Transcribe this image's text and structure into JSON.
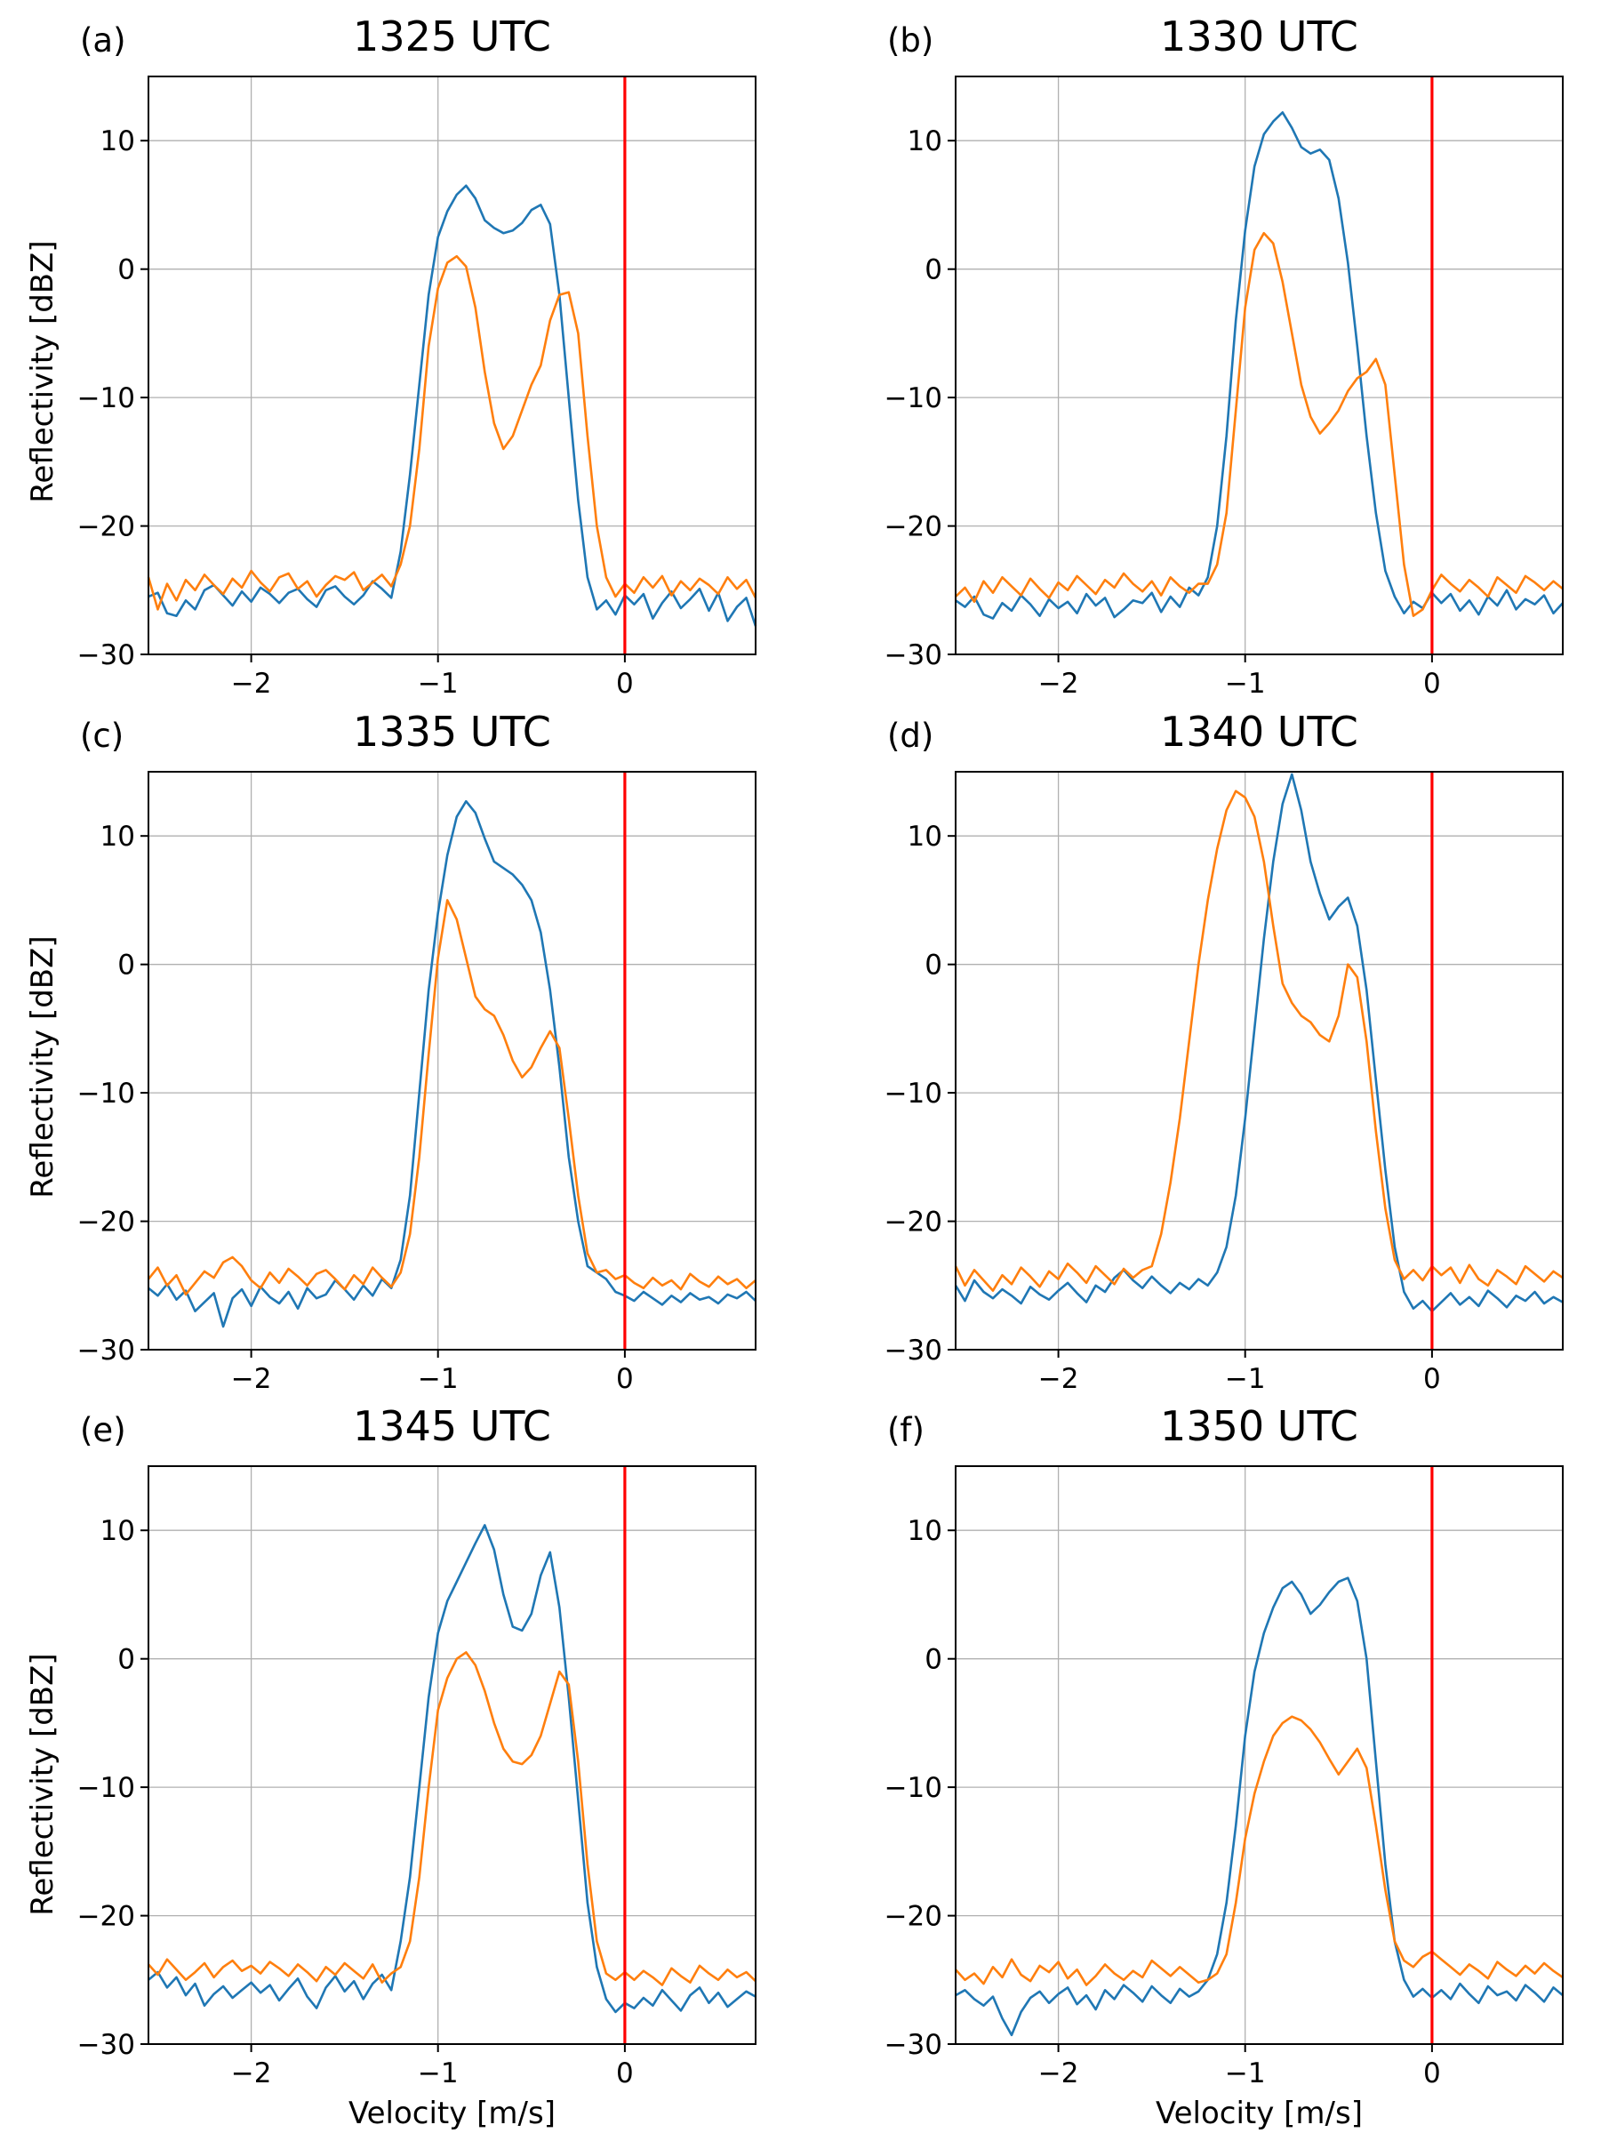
{
  "figure": {
    "background": "#ffffff"
  },
  "chart_data": {
    "type": "line",
    "xlabel": "Velocity [m/s]",
    "ylabel": "Reflectivity [dBZ]",
    "x_start": -2.55,
    "x_step": 0.05,
    "xlim": [
      -2.55,
      0.7
    ],
    "ylim": [
      -30,
      15
    ],
    "xticks": [
      -2,
      -1,
      0
    ],
    "yticks": [
      -30,
      -20,
      -10,
      0,
      10
    ],
    "grid": true,
    "legend": "none",
    "vline_x": 0,
    "colors": {
      "series_blue": "#1f77b4",
      "series_orange": "#ff7f0e",
      "vline": "#ff0000",
      "grid": "#b0b0b0",
      "axis": "#000000"
    },
    "panels": [
      {
        "tag": "(a)",
        "title": "1325 UTC",
        "series": [
          {
            "name": "blue",
            "color": "#1f77b4",
            "values": [
              -25.5,
              -25.2,
              -26.8,
              -27.0,
              -25.8,
              -26.5,
              -25.0,
              -24.6,
              -25.4,
              -26.2,
              -25.1,
              -25.9,
              -24.8,
              -25.3,
              -26.0,
              -25.2,
              -24.9,
              -25.7,
              -26.3,
              -25.0,
              -24.7,
              -25.5,
              -26.1,
              -25.4,
              -24.3,
              -24.9,
              -25.6,
              -22.0,
              -16.0,
              -9.0,
              -2.0,
              2.5,
              4.5,
              5.8,
              6.5,
              5.5,
              3.8,
              3.2,
              2.8,
              3.0,
              3.6,
              4.6,
              5.0,
              3.5,
              -2.0,
              -10.0,
              -18.0,
              -24.0,
              -26.5,
              -25.8,
              -26.9,
              -25.4,
              -26.1,
              -25.3,
              -27.2,
              -26.0,
              -25.1,
              -26.4,
              -25.7,
              -24.9,
              -26.6,
              -25.2,
              -27.4,
              -26.3,
              -25.6,
              -27.8
            ]
          },
          {
            "name": "orange",
            "color": "#ff7f0e",
            "values": [
              -24.0,
              -26.5,
              -24.5,
              -25.8,
              -24.2,
              -25.0,
              -23.8,
              -24.6,
              -25.3,
              -24.1,
              -24.8,
              -23.5,
              -24.4,
              -25.1,
              -24.0,
              -23.7,
              -24.9,
              -24.3,
              -25.5,
              -24.6,
              -23.9,
              -24.2,
              -23.6,
              -25.0,
              -24.4,
              -23.8,
              -24.7,
              -23.0,
              -20.0,
              -14.0,
              -6.0,
              -1.5,
              0.5,
              1.0,
              0.2,
              -3.0,
              -8.0,
              -12.0,
              -14.0,
              -13.0,
              -11.0,
              -9.0,
              -7.5,
              -4.0,
              -2.0,
              -1.8,
              -5.0,
              -13.0,
              -20.0,
              -24.0,
              -25.5,
              -24.5,
              -25.2,
              -24.0,
              -24.8,
              -23.9,
              -25.4,
              -24.3,
              -25.0,
              -24.1,
              -24.6,
              -25.3,
              -24.0,
              -24.9,
              -24.2,
              -25.6
            ]
          }
        ]
      },
      {
        "tag": "(b)",
        "title": "1330 UTC",
        "series": [
          {
            "name": "blue",
            "color": "#1f77b4",
            "values": [
              -25.8,
              -26.3,
              -25.5,
              -26.9,
              -27.2,
              -26.0,
              -26.6,
              -25.4,
              -26.1,
              -27.0,
              -25.7,
              -26.4,
              -25.9,
              -26.8,
              -25.3,
              -26.2,
              -25.6,
              -27.1,
              -26.5,
              -25.8,
              -26.0,
              -25.2,
              -26.7,
              -25.5,
              -26.3,
              -24.8,
              -25.4,
              -24.0,
              -20.0,
              -13.0,
              -4.0,
              3.0,
              8.0,
              10.5,
              11.5,
              12.2,
              11.0,
              9.5,
              9.0,
              9.3,
              8.5,
              5.5,
              0.5,
              -6.0,
              -13.0,
              -19.0,
              -23.5,
              -25.5,
              -26.8,
              -25.9,
              -26.4,
              -25.2,
              -26.0,
              -25.3,
              -26.6,
              -25.8,
              -26.9,
              -25.5,
              -26.2,
              -25.0,
              -26.5,
              -25.7,
              -26.1,
              -25.4,
              -26.8,
              -26.0
            ]
          },
          {
            "name": "orange",
            "color": "#ff7f0e",
            "values": [
              -25.5,
              -24.8,
              -25.9,
              -24.3,
              -25.2,
              -24.0,
              -24.7,
              -25.4,
              -24.1,
              -24.9,
              -25.6,
              -24.4,
              -25.0,
              -23.9,
              -24.6,
              -25.3,
              -24.2,
              -24.8,
              -23.7,
              -24.5,
              -25.1,
              -24.3,
              -25.4,
              -24.0,
              -24.7,
              -25.2,
              -24.5,
              -24.5,
              -23.0,
              -19.0,
              -11.0,
              -3.0,
              1.5,
              2.8,
              2.0,
              -1.0,
              -5.0,
              -9.0,
              -11.5,
              -12.8,
              -12.0,
              -11.0,
              -9.5,
              -8.5,
              -8.0,
              -7.0,
              -9.0,
              -16.0,
              -23.0,
              -27.0,
              -26.5,
              -25.0,
              -23.8,
              -24.5,
              -25.1,
              -24.2,
              -24.8,
              -25.5,
              -24.0,
              -24.6,
              -25.2,
              -23.9,
              -24.4,
              -25.0,
              -24.3,
              -24.9
            ]
          }
        ]
      },
      {
        "tag": "(c)",
        "title": "1335 UTC",
        "series": [
          {
            "name": "blue",
            "color": "#1f77b4",
            "values": [
              -25.2,
              -25.8,
              -24.9,
              -26.1,
              -25.4,
              -27.0,
              -26.3,
              -25.6,
              -28.2,
              -26.0,
              -25.3,
              -26.6,
              -25.1,
              -25.9,
              -26.4,
              -25.5,
              -26.8,
              -25.2,
              -26.0,
              -25.7,
              -24.6,
              -25.3,
              -26.1,
              -25.0,
              -25.8,
              -24.5,
              -25.2,
              -23.0,
              -18.0,
              -10.0,
              -2.0,
              4.0,
              8.5,
              11.5,
              12.7,
              11.8,
              9.8,
              8.0,
              7.5,
              7.0,
              6.2,
              5.0,
              2.5,
              -2.0,
              -8.0,
              -15.0,
              -20.0,
              -23.5,
              -24.0,
              -24.5,
              -25.5,
              -25.8,
              -26.2,
              -25.5,
              -26.0,
              -26.5,
              -25.8,
              -26.3,
              -25.6,
              -26.1,
              -25.9,
              -26.4,
              -25.7,
              -26.0,
              -25.5,
              -26.2
            ]
          },
          {
            "name": "orange",
            "color": "#ff7f0e",
            "values": [
              -24.5,
              -23.6,
              -25.0,
              -24.2,
              -25.7,
              -24.8,
              -23.9,
              -24.4,
              -23.2,
              -22.8,
              -23.5,
              -24.6,
              -25.2,
              -24.0,
              -24.8,
              -23.7,
              -24.3,
              -25.0,
              -24.1,
              -23.8,
              -24.5,
              -25.3,
              -24.2,
              -24.9,
              -23.6,
              -24.4,
              -25.1,
              -24.0,
              -21.0,
              -15.0,
              -7.0,
              0.5,
              5.0,
              3.5,
              0.5,
              -2.5,
              -3.5,
              -4.0,
              -5.5,
              -7.5,
              -8.8,
              -8.0,
              -6.5,
              -5.2,
              -6.5,
              -12.0,
              -18.0,
              -22.5,
              -24.0,
              -23.8,
              -24.5,
              -24.2,
              -24.8,
              -25.2,
              -24.4,
              -25.0,
              -24.6,
              -25.3,
              -24.1,
              -24.7,
              -25.1,
              -24.3,
              -24.9,
              -24.5,
              -25.2,
              -24.6
            ]
          }
        ]
      },
      {
        "tag": "(d)",
        "title": "1340 UTC",
        "series": [
          {
            "name": "blue",
            "color": "#1f77b4",
            "values": [
              -25.0,
              -26.2,
              -24.6,
              -25.5,
              -26.0,
              -25.3,
              -25.8,
              -26.4,
              -25.1,
              -25.7,
              -26.1,
              -25.4,
              -24.8,
              -25.6,
              -26.3,
              -25.0,
              -25.5,
              -24.4,
              -23.8,
              -24.6,
              -25.2,
              -24.3,
              -25.0,
              -25.6,
              -24.8,
              -25.3,
              -24.5,
              -25.0,
              -24.0,
              -22.0,
              -18.0,
              -12.0,
              -5.0,
              2.0,
              8.0,
              12.5,
              14.8,
              12.0,
              8.0,
              5.5,
              3.5,
              4.5,
              5.2,
              3.0,
              -2.0,
              -9.0,
              -16.0,
              -22.0,
              -25.5,
              -26.8,
              -26.2,
              -27.0,
              -26.3,
              -25.6,
              -26.5,
              -25.9,
              -26.6,
              -25.4,
              -26.0,
              -26.7,
              -25.8,
              -26.2,
              -25.5,
              -26.4,
              -25.9,
              -26.3
            ]
          },
          {
            "name": "orange",
            "color": "#ff7f0e",
            "values": [
              -23.5,
              -25.0,
              -23.8,
              -24.6,
              -25.4,
              -24.2,
              -24.9,
              -23.6,
              -24.3,
              -25.1,
              -23.9,
              -24.5,
              -23.3,
              -24.0,
              -24.8,
              -23.5,
              -24.2,
              -24.9,
              -23.7,
              -24.4,
              -23.8,
              -23.5,
              -21.0,
              -17.0,
              -12.0,
              -6.0,
              0.0,
              5.0,
              9.0,
              12.0,
              13.5,
              13.0,
              11.5,
              8.0,
              3.0,
              -1.5,
              -3.0,
              -4.0,
              -4.5,
              -5.5,
              -6.0,
              -4.0,
              0.0,
              -1.0,
              -6.0,
              -13.0,
              -19.0,
              -23.0,
              -24.5,
              -23.8,
              -24.6,
              -23.5,
              -24.2,
              -23.6,
              -24.8,
              -23.4,
              -24.5,
              -25.0,
              -23.8,
              -24.3,
              -24.9,
              -23.5,
              -24.1,
              -24.7,
              -23.9,
              -24.4
            ]
          }
        ]
      },
      {
        "tag": "(e)",
        "title": "1345 UTC",
        "series": [
          {
            "name": "blue",
            "color": "#1f77b4",
            "values": [
              -25.0,
              -24.4,
              -25.6,
              -24.8,
              -26.2,
              -25.3,
              -27.0,
              -26.1,
              -25.5,
              -26.4,
              -25.8,
              -25.2,
              -26.0,
              -25.4,
              -26.6,
              -25.7,
              -24.9,
              -26.3,
              -27.2,
              -25.6,
              -24.7,
              -25.9,
              -25.1,
              -26.5,
              -25.3,
              -24.6,
              -25.8,
              -22.0,
              -17.0,
              -10.0,
              -3.0,
              2.0,
              4.5,
              6.0,
              7.5,
              9.0,
              10.4,
              8.5,
              5.0,
              2.5,
              2.2,
              3.5,
              6.5,
              8.3,
              4.0,
              -3.0,
              -11.0,
              -19.0,
              -24.0,
              -26.5,
              -27.5,
              -26.8,
              -27.2,
              -26.4,
              -27.0,
              -25.8,
              -26.6,
              -27.4,
              -26.2,
              -25.6,
              -26.8,
              -26.0,
              -27.1,
              -26.5,
              -25.9,
              -26.3
            ]
          },
          {
            "name": "orange",
            "color": "#ff7f0e",
            "values": [
              -23.8,
              -24.6,
              -23.4,
              -24.2,
              -25.0,
              -24.4,
              -23.7,
              -24.8,
              -24.0,
              -23.5,
              -24.3,
              -23.9,
              -24.5,
              -23.6,
              -24.1,
              -24.7,
              -23.8,
              -24.4,
              -25.1,
              -24.0,
              -24.6,
              -23.7,
              -24.3,
              -24.9,
              -23.8,
              -25.2,
              -24.5,
              -24.0,
              -22.0,
              -17.0,
              -10.0,
              -4.0,
              -1.5,
              0.0,
              0.5,
              -0.5,
              -2.5,
              -5.0,
              -7.0,
              -8.0,
              -8.2,
              -7.5,
              -6.0,
              -3.5,
              -1.0,
              -2.0,
              -8.0,
              -16.0,
              -22.0,
              -24.5,
              -25.0,
              -24.4,
              -25.0,
              -24.3,
              -24.8,
              -25.4,
              -24.1,
              -24.7,
              -25.2,
              -23.9,
              -24.5,
              -25.0,
              -24.2,
              -24.8,
              -24.4,
              -25.1
            ]
          }
        ]
      },
      {
        "tag": "(f)",
        "title": "1350 UTC",
        "series": [
          {
            "name": "blue",
            "color": "#1f77b4",
            "values": [
              -26.2,
              -25.8,
              -26.5,
              -27.0,
              -26.3,
              -28.0,
              -29.3,
              -27.5,
              -26.4,
              -25.9,
              -26.8,
              -26.1,
              -25.6,
              -26.9,
              -26.2,
              -27.3,
              -25.8,
              -26.5,
              -25.4,
              -26.0,
              -26.7,
              -25.5,
              -26.2,
              -26.8,
              -25.7,
              -26.3,
              -25.9,
              -25.0,
              -23.0,
              -19.0,
              -13.0,
              -6.0,
              -1.0,
              2.0,
              4.0,
              5.5,
              6.0,
              5.0,
              3.5,
              4.2,
              5.2,
              6.0,
              6.3,
              4.5,
              0.0,
              -8.0,
              -16.0,
              -22.0,
              -25.0,
              -26.3,
              -25.7,
              -26.4,
              -25.8,
              -26.5,
              -25.3,
              -26.1,
              -26.8,
              -25.5,
              -26.2,
              -25.9,
              -26.6,
              -25.4,
              -26.0,
              -26.7,
              -25.6,
              -26.2
            ]
          },
          {
            "name": "orange",
            "color": "#ff7f0e",
            "values": [
              -24.2,
              -25.0,
              -24.5,
              -25.3,
              -24.0,
              -24.8,
              -23.4,
              -24.6,
              -25.1,
              -23.9,
              -24.4,
              -23.6,
              -24.9,
              -24.2,
              -25.4,
              -24.7,
              -23.8,
              -24.5,
              -25.0,
              -24.3,
              -24.8,
              -23.5,
              -24.1,
              -24.7,
              -24.0,
              -24.6,
              -25.2,
              -25.0,
              -24.5,
              -23.0,
              -19.0,
              -14.0,
              -10.5,
              -8.0,
              -6.0,
              -5.0,
              -4.5,
              -4.8,
              -5.5,
              -6.5,
              -7.8,
              -9.0,
              -8.0,
              -7.0,
              -8.5,
              -13.0,
              -18.0,
              -22.0,
              -23.5,
              -24.0,
              -23.2,
              -22.8,
              -23.4,
              -24.0,
              -24.6,
              -23.8,
              -24.3,
              -24.9,
              -23.6,
              -24.2,
              -24.7,
              -23.9,
              -24.5,
              -23.7,
              -24.3,
              -24.8
            ]
          }
        ]
      }
    ]
  }
}
